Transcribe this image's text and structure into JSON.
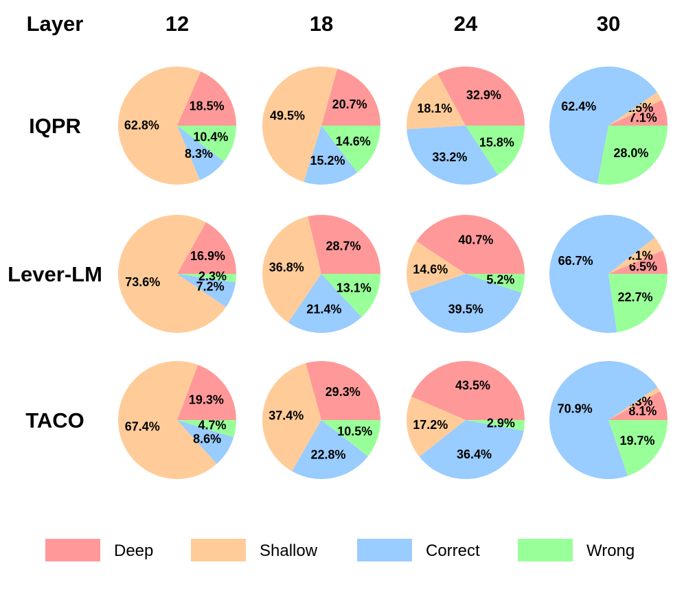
{
  "header": {
    "corner_label": "Layer"
  },
  "colors": {
    "Deep": "#ff9999",
    "Shallow": "#ffcc99",
    "Correct": "#99ccff",
    "Wrong": "#99ff99"
  },
  "legend": [
    {
      "label": "Deep",
      "color": "#ff9999"
    },
    {
      "label": "Shallow",
      "color": "#ffcc99"
    },
    {
      "label": "Correct",
      "color": "#99ccff"
    },
    {
      "label": "Wrong",
      "color": "#99ff99"
    }
  ],
  "chart_data": {
    "type": "pie",
    "layers": [
      "12",
      "18",
      "24",
      "30"
    ],
    "methods": [
      "IQPR",
      "Lever-LM",
      "TACO"
    ],
    "categories": [
      "Deep",
      "Shallow",
      "Correct",
      "Wrong"
    ],
    "pies": [
      {
        "method": "IQPR",
        "layer": "12",
        "values": [
          18.5,
          62.8,
          8.3,
          10.4
        ]
      },
      {
        "method": "IQPR",
        "layer": "18",
        "values": [
          20.7,
          49.5,
          15.2,
          14.6
        ]
      },
      {
        "method": "IQPR",
        "layer": "24",
        "values": [
          32.9,
          18.1,
          33.2,
          15.8
        ]
      },
      {
        "method": "IQPR",
        "layer": "30",
        "values": [
          7.1,
          2.5,
          62.4,
          28.0
        ]
      },
      {
        "method": "Lever-LM",
        "layer": "12",
        "values": [
          16.9,
          73.6,
          7.2,
          2.3
        ]
      },
      {
        "method": "Lever-LM",
        "layer": "18",
        "values": [
          28.7,
          36.8,
          21.4,
          13.1
        ]
      },
      {
        "method": "Lever-LM",
        "layer": "24",
        "values": [
          40.7,
          14.6,
          39.5,
          5.2
        ]
      },
      {
        "method": "Lever-LM",
        "layer": "30",
        "values": [
          6.5,
          4.1,
          66.7,
          22.7
        ]
      },
      {
        "method": "TACO",
        "layer": "12",
        "values": [
          19.3,
          67.4,
          8.6,
          4.7
        ]
      },
      {
        "method": "TACO",
        "layer": "18",
        "values": [
          29.3,
          37.4,
          22.8,
          10.5
        ]
      },
      {
        "method": "TACO",
        "layer": "24",
        "values": [
          43.5,
          17.2,
          36.4,
          2.9
        ]
      },
      {
        "method": "TACO",
        "layer": "30",
        "values": [
          8.1,
          1.3,
          70.9,
          19.7
        ]
      }
    ]
  }
}
